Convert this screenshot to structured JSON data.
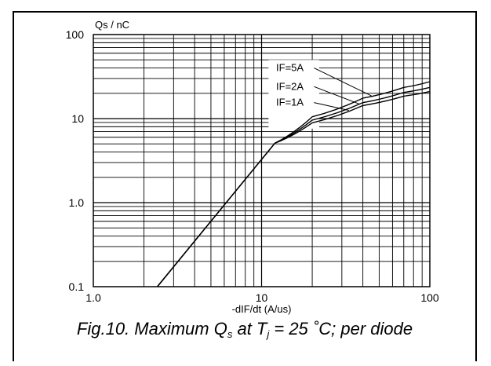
{
  "chart_data": {
    "type": "line",
    "title": "",
    "xlabel": "-dIF/dt (A/us)",
    "ylabel": "Qs / nC",
    "xscale": "log",
    "yscale": "log",
    "xlim": [
      1,
      100
    ],
    "ylim": [
      0.1,
      100
    ],
    "grid": true,
    "x_tick_labels": [
      "1.0",
      "10",
      "100"
    ],
    "y_tick_labels": [
      "0.1",
      "1.0",
      "10",
      "100"
    ],
    "x_ticks": [
      1,
      10,
      100
    ],
    "y_ticks": [
      0.1,
      1,
      10,
      100
    ],
    "series": [
      {
        "name": "IF=5A",
        "x": [
          2.4,
          12,
          20,
          40,
          70,
          100
        ],
        "y": [
          0.1,
          5.1,
          10.5,
          17.5,
          23.5,
          27.5
        ]
      },
      {
        "name": "IF=2A",
        "x": [
          2.4,
          12,
          20,
          40,
          70,
          100
        ],
        "y": [
          0.1,
          5.1,
          9.6,
          15.5,
          20.5,
          23.5
        ]
      },
      {
        "name": "IF=1A",
        "x": [
          2.4,
          12,
          20,
          40,
          70,
          100
        ],
        "y": [
          0.1,
          5.1,
          8.9,
          14.3,
          18.5,
          21.0
        ]
      }
    ],
    "annotations": [
      "IF=5A",
      "IF=2A",
      "IF=1A"
    ]
  },
  "caption": {
    "prefix": "Fig.10.  Maximum Q",
    "q_sub": "s",
    "mid": " at T",
    "t_sub": "j",
    "suffix": " = 25 ˚C; per diode"
  }
}
